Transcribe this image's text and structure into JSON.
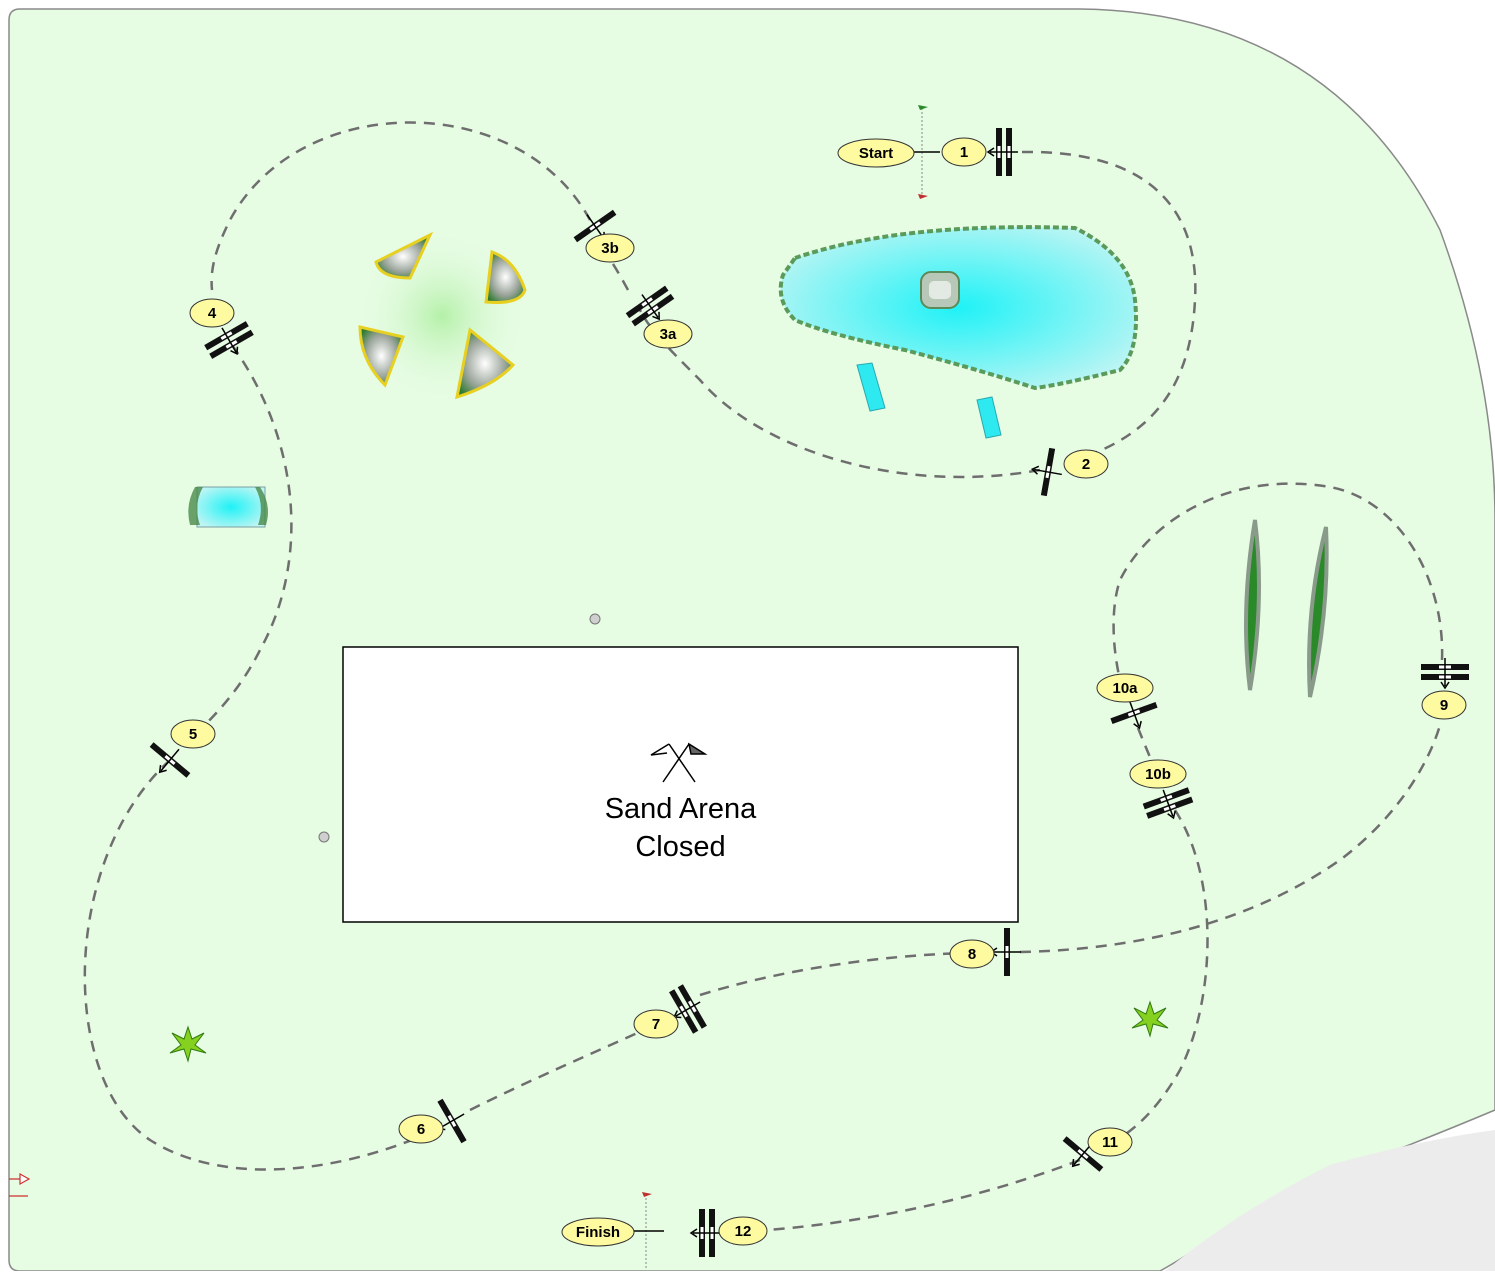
{
  "arena": {
    "line1": "Sand Arena",
    "line2": "Closed"
  },
  "markers": [
    {
      "id": "start",
      "label": "Start"
    },
    {
      "id": "1",
      "label": "1"
    },
    {
      "id": "2",
      "label": "2"
    },
    {
      "id": "3a",
      "label": "3a"
    },
    {
      "id": "3b",
      "label": "3b"
    },
    {
      "id": "4",
      "label": "4"
    },
    {
      "id": "5",
      "label": "5"
    },
    {
      "id": "6",
      "label": "6"
    },
    {
      "id": "7",
      "label": "7"
    },
    {
      "id": "8",
      "label": "8"
    },
    {
      "id": "9",
      "label": "9"
    },
    {
      "id": "10a",
      "label": "10a"
    },
    {
      "id": "10b",
      "label": "10b"
    },
    {
      "id": "11",
      "label": "11"
    },
    {
      "id": "12",
      "label": "12"
    },
    {
      "id": "finish",
      "label": "Finish"
    }
  ],
  "colors": {
    "field": "#e6fce3",
    "field_border": "#8a8a8a",
    "label_fill": "#fdfaa0",
    "route": "#6e6e6e",
    "water": "#2ee9f0",
    "arena_fill": "#ffffff"
  },
  "icons": [
    "crossed-flags-icon",
    "jump-fence-icon",
    "water-pond-icon",
    "bush-icon",
    "tree-line-icon"
  ]
}
